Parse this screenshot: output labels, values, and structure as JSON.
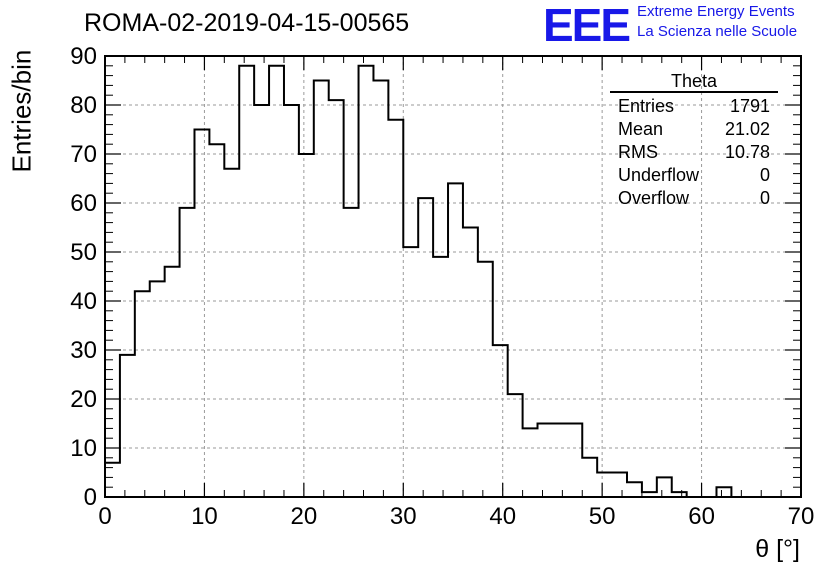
{
  "header": {
    "title": "ROMA-02-2019-04-15-00565",
    "logo_mark": "EEE",
    "logo_line1": "Extreme Energy Events",
    "logo_line2": "La Scienza nelle Scuole"
  },
  "stats_box": {
    "name": "Theta",
    "rows": [
      {
        "label": "Entries",
        "value": "1791"
      },
      {
        "label": "Mean",
        "value": "21.02"
      },
      {
        "label": "RMS",
        "value": "10.78"
      },
      {
        "label": "Underflow",
        "value": "0"
      },
      {
        "label": "Overflow",
        "value": "0"
      }
    ]
  },
  "chart_data": {
    "type": "bar",
    "style": "step-histogram",
    "title": "ROMA-02-2019-04-15-00565",
    "xlabel": "θ [°]",
    "ylabel": "Entries/bin",
    "xlim": [
      0,
      70
    ],
    "ylim": [
      0,
      90
    ],
    "bin_width": 1.5,
    "bin_edges_start": 0,
    "values": [
      7,
      29,
      42,
      44,
      47,
      59,
      75,
      72,
      67,
      88,
      80,
      88,
      80,
      70,
      85,
      81,
      59,
      88,
      85,
      77,
      51,
      61,
      49,
      64,
      55,
      48,
      31,
      21,
      14,
      15,
      15,
      15,
      8,
      5,
      5,
      3,
      1,
      4,
      1,
      0,
      0,
      0,
      0,
      0,
      0,
      0,
      0,
      0,
      0,
      0,
      0,
      0,
      0,
      0,
      0,
      0,
      0,
      0,
      0,
      0,
      0,
      0,
      0,
      0,
      0,
      0,
      0,
      0,
      0,
      0,
      0
    ],
    "extra_bins": [
      {
        "x_start": 61.5,
        "x_end": 63.0,
        "value": 2
      }
    ],
    "x_ticks": [
      0,
      10,
      20,
      30,
      40,
      50,
      60,
      70
    ],
    "y_ticks": [
      0,
      10,
      20,
      30,
      40,
      50,
      60,
      70,
      80,
      90
    ],
    "grid": true,
    "line_color": "#000000"
  }
}
